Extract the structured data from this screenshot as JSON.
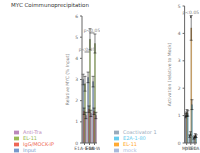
{
  "chart_data": [
    {
      "type": "bar",
      "title": "MYC Coimmunoprecipitation",
      "ylabel": "Relative MYC (% Input)",
      "categories": [
        "E1A-1-80",
        "E1A",
        "E1A-WT"
      ],
      "series": [
        {
          "name": "Input",
          "color": "#7799CC",
          "values": [
            3.0,
            3.1,
            2.9
          ],
          "errors": [
            0.25,
            0.25,
            0.25
          ]
        },
        {
          "name": "IgG/MOCK-IP",
          "color": "#EE6655",
          "values": [
            1.5,
            1.6,
            1.5
          ],
          "errors": [
            0.15,
            0.15,
            0.15
          ]
        },
        {
          "name": "EL-11",
          "color": "#99BB55",
          "values": [
            2.8,
            4.9,
            4.7
          ],
          "errors": [
            0.35,
            0.5,
            0.45
          ]
        },
        {
          "name": "Anti-Tra",
          "color": "#BB88BB",
          "values": [
            1.3,
            1.4,
            1.3
          ],
          "errors": [
            0.15,
            0.15,
            0.15
          ]
        }
      ],
      "ylim": [
        0,
        6
      ],
      "yticks": [
        0,
        1,
        2,
        3,
        4,
        5,
        6
      ],
      "legend": "bottom",
      "annotations": [
        {
          "text": "p<0.05",
          "from": "E1A",
          "to": "E1A-WT",
          "y": 5.2
        },
        {
          "text": "p<0.05",
          "from": "E1A-1-80",
          "to": "E1A",
          "y": 4.3
        }
      ]
    },
    {
      "type": "bar",
      "ylabel": "Activation (relative to Mock)",
      "categories": [
        "MYC",
        "p300",
        "E1A"
      ],
      "series": [
        {
          "name": "mock",
          "color": "#AABBDD",
          "values": [
            1.0,
            0.25,
            0.18
          ],
          "errors": [
            0.08,
            0.04,
            0.04
          ]
        },
        {
          "name": "Coactivator 1",
          "color": "#99AABB",
          "values": [
            1.05,
            0.35,
            0.22
          ],
          "errors": [
            0.08,
            0.06,
            0.04
          ]
        },
        {
          "name": "EL-11",
          "color": "#FFAA33",
          "values": [
            1.1,
            4.2,
            0.28
          ],
          "errors": [
            0.12,
            0.45,
            0.06
          ]
        },
        {
          "name": "E2A-1-80",
          "color": "#66CCEE",
          "values": [
            1.08,
            1.4,
            0.25
          ],
          "errors": [
            0.1,
            0.18,
            0.05
          ]
        }
      ],
      "ylim": [
        0,
        5
      ],
      "yticks": [
        0,
        1,
        2,
        3,
        4,
        5
      ],
      "legend": "bottom",
      "annotations": [
        {
          "text": "p<0.05",
          "from": "p300",
          "to": "p300",
          "y": 4.6
        }
      ]
    }
  ]
}
